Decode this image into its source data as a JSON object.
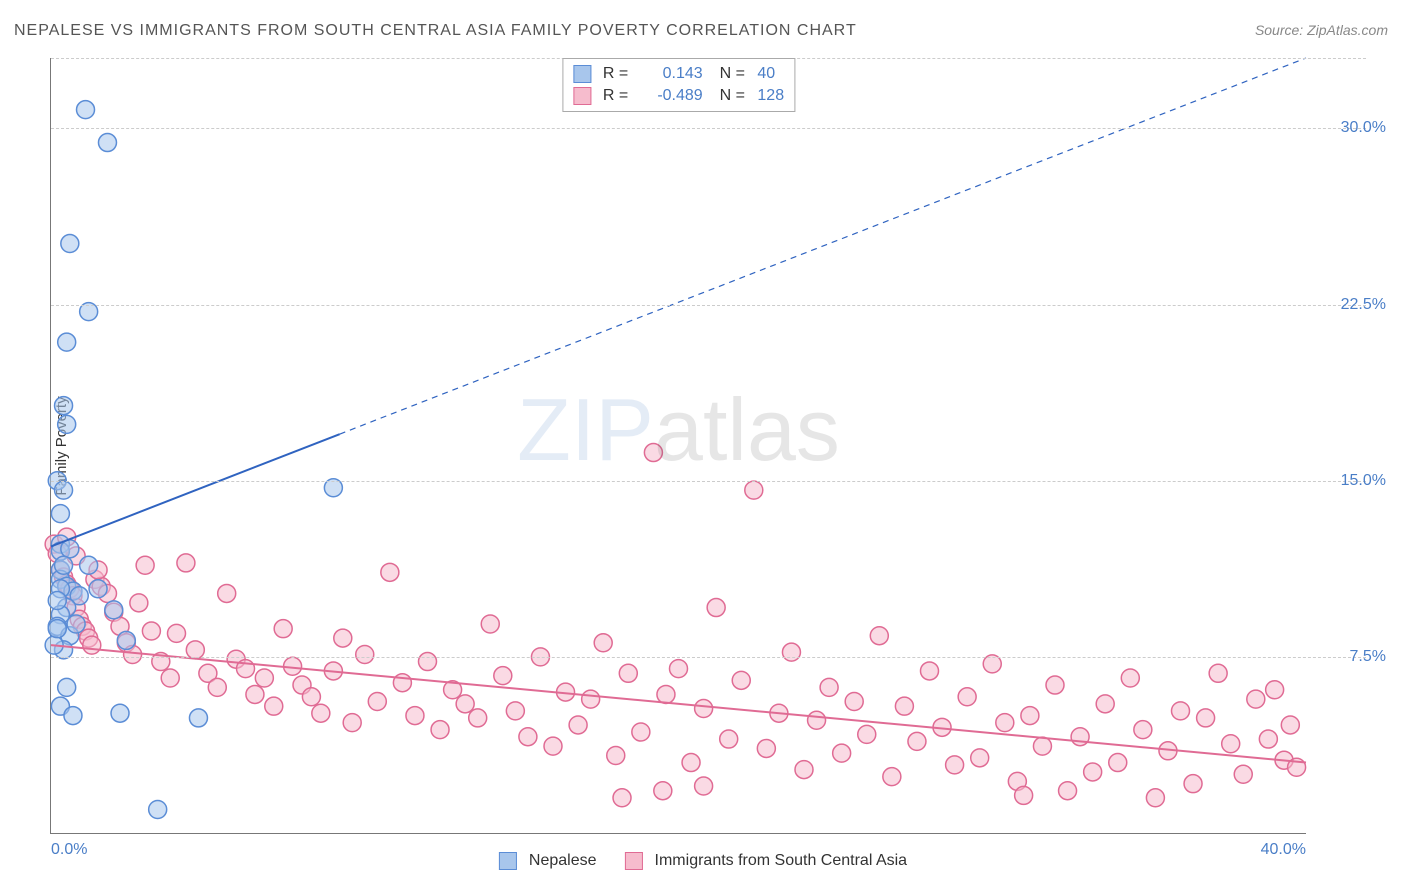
{
  "title": "NEPALESE VS IMMIGRANTS FROM SOUTH CENTRAL ASIA FAMILY POVERTY CORRELATION CHART",
  "source": "Source: ZipAtlas.com",
  "ylabel": "Family Poverty",
  "watermark_z": "ZIP",
  "watermark_rest": "atlas",
  "chart": {
    "type": "scatter",
    "background_color": "#ffffff",
    "grid_color": "#cccccc",
    "axis_color": "#777777",
    "tick_color": "#4a7ec7",
    "tick_fontsize": 16,
    "xlim": [
      0,
      40
    ],
    "ylim": [
      0,
      33
    ],
    "xticks": [
      {
        "v": 0,
        "label": "0.0%"
      },
      {
        "v": 40,
        "label": "40.0%"
      }
    ],
    "yticks": [
      {
        "v": 7.5,
        "label": "7.5%"
      },
      {
        "v": 15,
        "label": "15.0%"
      },
      {
        "v": 22.5,
        "label": "22.5%"
      },
      {
        "v": 30,
        "label": "30.0%"
      }
    ],
    "marker_radius": 9,
    "marker_stroke_width": 1.5,
    "series": [
      {
        "name": "Nepalese",
        "color_fill": "#a8c6ec",
        "color_stroke": "#5b8dd6",
        "fill_opacity": 0.55,
        "R": "0.143",
        "N": "40",
        "trend": {
          "x1": 0,
          "y1": 12.2,
          "x2": 40,
          "y2": 33.0,
          "solid_until_x": 9.2,
          "color": "#2f63c0",
          "width": 2
        },
        "points": [
          [
            0.3,
            12.3
          ],
          [
            0.3,
            12.0
          ],
          [
            0.3,
            11.2
          ],
          [
            1.1,
            30.8
          ],
          [
            1.8,
            29.4
          ],
          [
            0.6,
            25.1
          ],
          [
            1.2,
            22.2
          ],
          [
            0.5,
            20.9
          ],
          [
            0.4,
            18.2
          ],
          [
            0.5,
            17.4
          ],
          [
            0.2,
            15.0
          ],
          [
            0.4,
            14.6
          ],
          [
            0.3,
            13.6
          ],
          [
            0.3,
            10.8
          ],
          [
            0.5,
            10.5
          ],
          [
            0.7,
            10.3
          ],
          [
            0.9,
            10.1
          ],
          [
            0.5,
            9.6
          ],
          [
            0.3,
            9.3
          ],
          [
            0.2,
            8.8
          ],
          [
            0.6,
            8.4
          ],
          [
            0.4,
            7.8
          ],
          [
            0.1,
            8.0
          ],
          [
            1.5,
            10.4
          ],
          [
            2.0,
            9.5
          ],
          [
            2.4,
            8.2
          ],
          [
            0.5,
            6.2
          ],
          [
            0.3,
            5.4
          ],
          [
            0.7,
            5.0
          ],
          [
            2.2,
            5.1
          ],
          [
            4.7,
            4.9
          ],
          [
            3.4,
            1.0
          ],
          [
            9.0,
            14.7
          ],
          [
            0.2,
            8.7
          ],
          [
            0.3,
            10.4
          ],
          [
            0.6,
            12.1
          ],
          [
            0.4,
            11.4
          ],
          [
            0.2,
            9.9
          ],
          [
            0.8,
            8.9
          ],
          [
            1.2,
            11.4
          ]
        ]
      },
      {
        "name": "Immigants from South Central Asia",
        "label": "Immigrants from South Central Asia",
        "color_fill": "#f6bccd",
        "color_stroke": "#e06b94",
        "fill_opacity": 0.55,
        "R": "-0.489",
        "N": "128",
        "trend": {
          "x1": 0,
          "y1": 8.0,
          "x2": 40,
          "y2": 3.0,
          "solid_until_x": 40,
          "color": "#e06b94",
          "width": 2
        },
        "points": [
          [
            0.1,
            12.3
          ],
          [
            0.2,
            11.9
          ],
          [
            0.3,
            11.2
          ],
          [
            0.4,
            10.9
          ],
          [
            0.5,
            10.6
          ],
          [
            0.6,
            10.4
          ],
          [
            0.7,
            10.1
          ],
          [
            0.8,
            9.6
          ],
          [
            0.9,
            9.1
          ],
          [
            1.0,
            8.8
          ],
          [
            1.1,
            8.6
          ],
          [
            1.2,
            8.3
          ],
          [
            1.3,
            8.0
          ],
          [
            1.4,
            10.8
          ],
          [
            1.6,
            10.5
          ],
          [
            1.8,
            10.2
          ],
          [
            2.0,
            9.4
          ],
          [
            2.2,
            8.8
          ],
          [
            2.4,
            8.1
          ],
          [
            2.6,
            7.6
          ],
          [
            2.8,
            9.8
          ],
          [
            3.0,
            11.4
          ],
          [
            3.2,
            8.6
          ],
          [
            3.5,
            7.3
          ],
          [
            3.8,
            6.6
          ],
          [
            4.0,
            8.5
          ],
          [
            4.3,
            11.5
          ],
          [
            4.6,
            7.8
          ],
          [
            5.0,
            6.8
          ],
          [
            5.3,
            6.2
          ],
          [
            5.6,
            10.2
          ],
          [
            5.9,
            7.4
          ],
          [
            6.2,
            7.0
          ],
          [
            6.5,
            5.9
          ],
          [
            6.8,
            6.6
          ],
          [
            7.1,
            5.4
          ],
          [
            7.4,
            8.7
          ],
          [
            7.7,
            7.1
          ],
          [
            8.0,
            6.3
          ],
          [
            8.3,
            5.8
          ],
          [
            8.6,
            5.1
          ],
          [
            9.0,
            6.9
          ],
          [
            9.3,
            8.3
          ],
          [
            9.6,
            4.7
          ],
          [
            10.0,
            7.6
          ],
          [
            10.4,
            5.6
          ],
          [
            10.8,
            11.1
          ],
          [
            11.2,
            6.4
          ],
          [
            11.6,
            5.0
          ],
          [
            12.0,
            7.3
          ],
          [
            12.4,
            4.4
          ],
          [
            12.8,
            6.1
          ],
          [
            13.2,
            5.5
          ],
          [
            13.6,
            4.9
          ],
          [
            14.0,
            8.9
          ],
          [
            14.4,
            6.7
          ],
          [
            14.8,
            5.2
          ],
          [
            15.2,
            4.1
          ],
          [
            15.6,
            7.5
          ],
          [
            16.0,
            3.7
          ],
          [
            16.4,
            6.0
          ],
          [
            16.8,
            4.6
          ],
          [
            17.2,
            5.7
          ],
          [
            17.6,
            8.1
          ],
          [
            18.0,
            3.3
          ],
          [
            18.4,
            6.8
          ],
          [
            18.8,
            4.3
          ],
          [
            19.2,
            16.2
          ],
          [
            19.6,
            5.9
          ],
          [
            20.0,
            7.0
          ],
          [
            20.4,
            3.0
          ],
          [
            20.8,
            5.3
          ],
          [
            21.2,
            9.6
          ],
          [
            21.6,
            4.0
          ],
          [
            22.0,
            6.5
          ],
          [
            22.4,
            14.6
          ],
          [
            22.8,
            3.6
          ],
          [
            23.2,
            5.1
          ],
          [
            23.6,
            7.7
          ],
          [
            24.0,
            2.7
          ],
          [
            24.4,
            4.8
          ],
          [
            24.8,
            6.2
          ],
          [
            25.2,
            3.4
          ],
          [
            25.6,
            5.6
          ],
          [
            26.0,
            4.2
          ],
          [
            26.4,
            8.4
          ],
          [
            26.8,
            2.4
          ],
          [
            27.2,
            5.4
          ],
          [
            27.6,
            3.9
          ],
          [
            28.0,
            6.9
          ],
          [
            28.4,
            4.5
          ],
          [
            28.8,
            2.9
          ],
          [
            29.2,
            5.8
          ],
          [
            29.6,
            3.2
          ],
          [
            30.0,
            7.2
          ],
          [
            30.4,
            4.7
          ],
          [
            30.8,
            2.2
          ],
          [
            31.2,
            5.0
          ],
          [
            31.6,
            3.7
          ],
          [
            32.0,
            6.3
          ],
          [
            32.4,
            1.8
          ],
          [
            32.8,
            4.1
          ],
          [
            33.2,
            2.6
          ],
          [
            33.6,
            5.5
          ],
          [
            34.0,
            3.0
          ],
          [
            34.4,
            6.6
          ],
          [
            34.8,
            4.4
          ],
          [
            35.2,
            1.5
          ],
          [
            35.6,
            3.5
          ],
          [
            36.0,
            5.2
          ],
          [
            36.4,
            2.1
          ],
          [
            36.8,
            4.9
          ],
          [
            37.2,
            6.8
          ],
          [
            37.6,
            3.8
          ],
          [
            38.0,
            2.5
          ],
          [
            38.4,
            5.7
          ],
          [
            38.8,
            4.0
          ],
          [
            39.0,
            6.1
          ],
          [
            39.3,
            3.1
          ],
          [
            39.5,
            4.6
          ],
          [
            39.7,
            2.8
          ],
          [
            31.0,
            1.6
          ],
          [
            18.2,
            1.5
          ],
          [
            19.5,
            1.8
          ],
          [
            20.8,
            2.0
          ],
          [
            0.5,
            12.6
          ],
          [
            0.8,
            11.8
          ],
          [
            1.5,
            11.2
          ]
        ]
      }
    ]
  },
  "legend_bottom": [
    {
      "swatch_fill": "#a8c6ec",
      "swatch_stroke": "#5b8dd6",
      "label": "Nepalese"
    },
    {
      "swatch_fill": "#f6bccd",
      "swatch_stroke": "#e06b94",
      "label": "Immigrants from South Central Asia"
    }
  ]
}
